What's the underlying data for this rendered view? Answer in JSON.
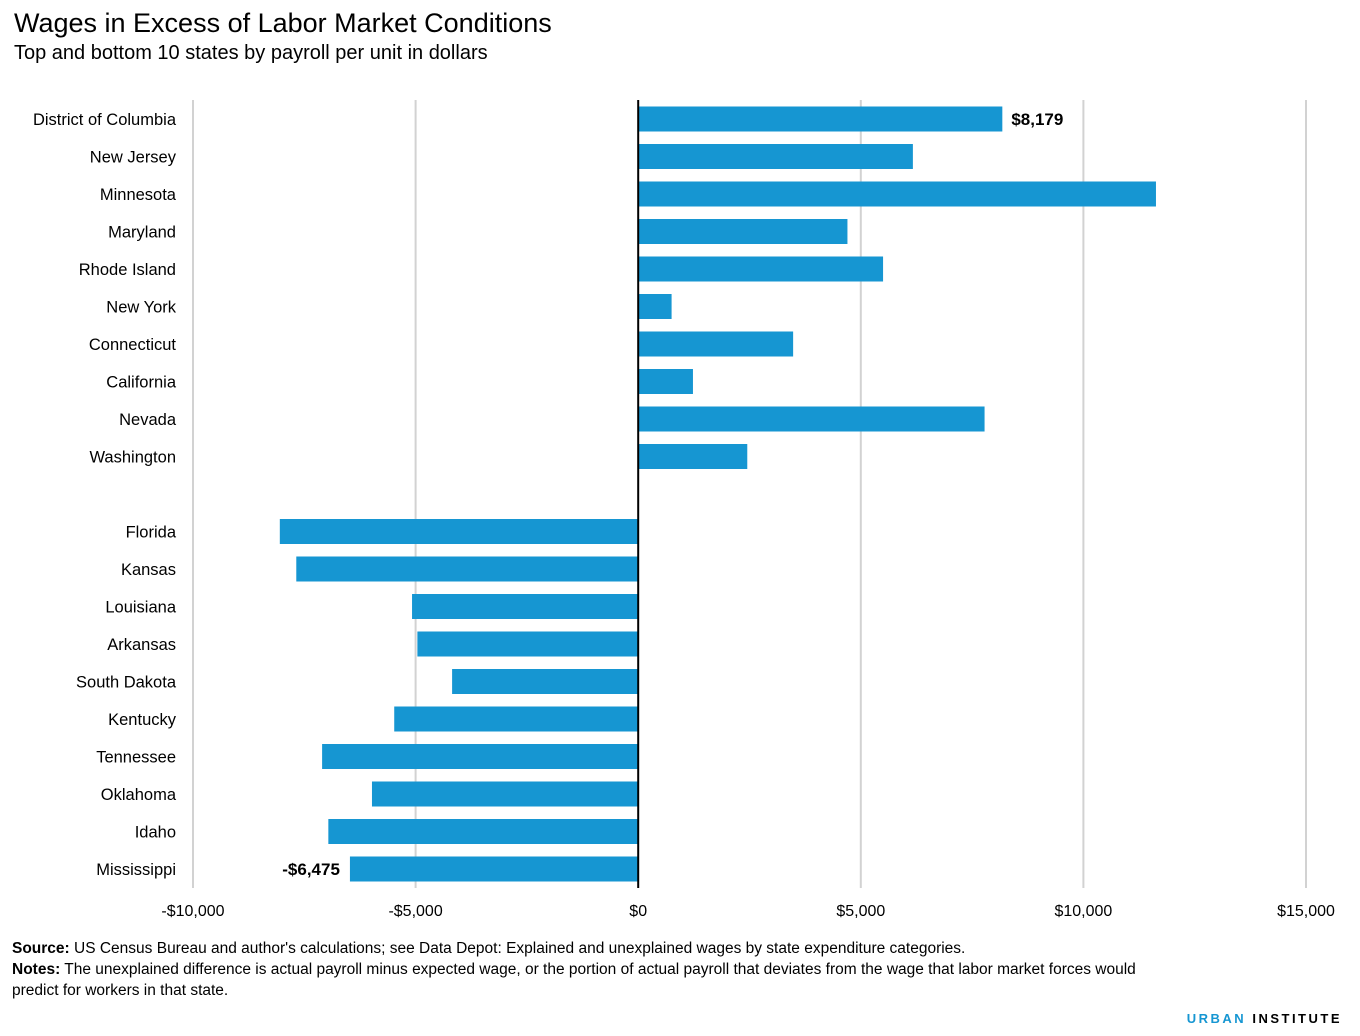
{
  "title": "Wages in Excess of Labor Market Conditions",
  "subtitle": "Top and bottom 10 states by payroll per unit in dollars",
  "chart_data": {
    "type": "bar",
    "orientation": "horizontal",
    "title": "Wages in Excess of Labor Market Conditions",
    "subtitle": "Top and bottom 10 states by payroll per unit in dollars",
    "xlabel": "",
    "ylabel": "",
    "xlim": [
      -10000,
      15000
    ],
    "xticks": [
      -10000,
      -5000,
      0,
      5000,
      10000,
      15000
    ],
    "xtick_labels": [
      "-$10,000",
      "-$5,000",
      "$0",
      "$5,000",
      "$10,000",
      "$15,000"
    ],
    "grid": "vertical",
    "bar_color": "#1696d2",
    "groups": [
      {
        "categories": [
          "District of Columbia",
          "New Jersey",
          "Minnesota",
          "Maryland",
          "Rhode Island",
          "New York",
          "Connecticut",
          "California",
          "Nevada",
          "Washington"
        ],
        "values": [
          8179,
          6170,
          11630,
          4700,
          5500,
          750,
          3480,
          1230,
          7780,
          2450
        ]
      },
      {
        "categories": [
          "Florida",
          "Kansas",
          "Louisiana",
          "Arkansas",
          "South Dakota",
          "Kentucky",
          "Tennessee",
          "Oklahoma",
          "Idaho",
          "Mississippi"
        ],
        "values": [
          -8050,
          -7680,
          -5080,
          -4960,
          -4180,
          -5480,
          -7100,
          -5980,
          -6960,
          -6475
        ]
      }
    ],
    "annotations": [
      {
        "category": "District of Columbia",
        "text": "$8,179"
      },
      {
        "category": "Mississippi",
        "text": "-$6,475"
      }
    ]
  },
  "footnotes": {
    "source_label": "Source:",
    "source_text": " US Census Bureau and author's calculations; see Data Depot: Explained and unexplained wages by state expenditure categories.",
    "notes_label": "Notes:",
    "notes_text": " The unexplained difference is actual payroll minus expected wage, or the portion of actual payroll that deviates from the wage that labor market forces would predict for workers in that state."
  },
  "brand": {
    "urban": "URBAN",
    "institute": "INSTITUTE"
  },
  "colors": {
    "bar": "#1696d2",
    "grid": "#d2d2d2",
    "axis": "#000000",
    "brand_accent": "#1696d2"
  }
}
